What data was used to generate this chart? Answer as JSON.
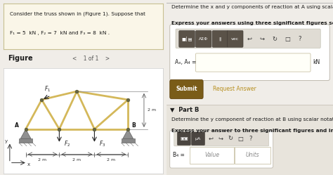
{
  "bg_color": "#f0ede8",
  "left_bg": "#f0ede8",
  "prob_box_bg": "#faf6e8",
  "prob_box_border": "#c8c090",
  "prob_line1": "Consider the truss shown in (Figure 1). Suppose that",
  "prob_line2_pre": "F",
  "prob_line2": "F₁ = 5  kN , F₂ = 7  kN and F₃ = 8  kN .",
  "figure_label": "Figure",
  "page_nav": "<    1 of 1    >",
  "right_bg": "#f0ede8",
  "right_text1": "Determine the x and y components of reaction at A using scalar notation.",
  "right_text2": "Express your answers using three significant figures separated by a comma.",
  "toolbar_outer_bg": "#e8e4dc",
  "toolbar_outer_border": "#c0bbb0",
  "btn1_label": "■│▤",
  "btn2_label": "AΣΦ",
  "btn3_label": "||",
  "btn4_label": "vec",
  "btn_dark_bg": "#5a5248",
  "btn_light_bg": "#d8d4cc",
  "input_label_A": "Aₓ, A₄ =",
  "input_unit_A": "kN",
  "submit_bg": "#7a5c18",
  "submit_text": "Submit",
  "req_ans_text": "Request Answer",
  "req_ans_color": "#b89020",
  "partB_bg": "#e8e4dc",
  "partB_label": "▼  Part B",
  "partB_text1": "Determine the y component of reaction at B using scalar notation.",
  "partB_text2": "Express your answer to three significant figures and include the appropriate units.",
  "tb2_btn1": "▣▣",
  "tb2_btn2": "μA",
  "input2_label": "B₄ =",
  "input2_val": "Value",
  "input2_unit": "Units",
  "truss_beam": "#d4b85a",
  "truss_node": "#888860",
  "support_fill": "#909090",
  "support_edge": "#606060"
}
